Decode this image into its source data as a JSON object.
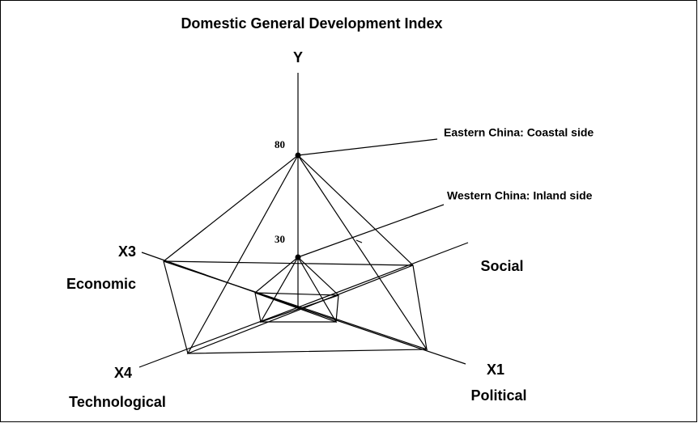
{
  "title": "Domestic General Development Index",
  "axes": {
    "y": "Y",
    "x1": "X1",
    "x1_name": "Political",
    "x2_name": "Social",
    "x3": "X3",
    "x3_name": "Economic",
    "x4": "X4",
    "x4_name": "Technological"
  },
  "levels": [
    {
      "name": "Eastern China: Coastal side",
      "value": 80
    },
    {
      "name": "Western China: Inland side",
      "value": 30
    }
  ]
}
